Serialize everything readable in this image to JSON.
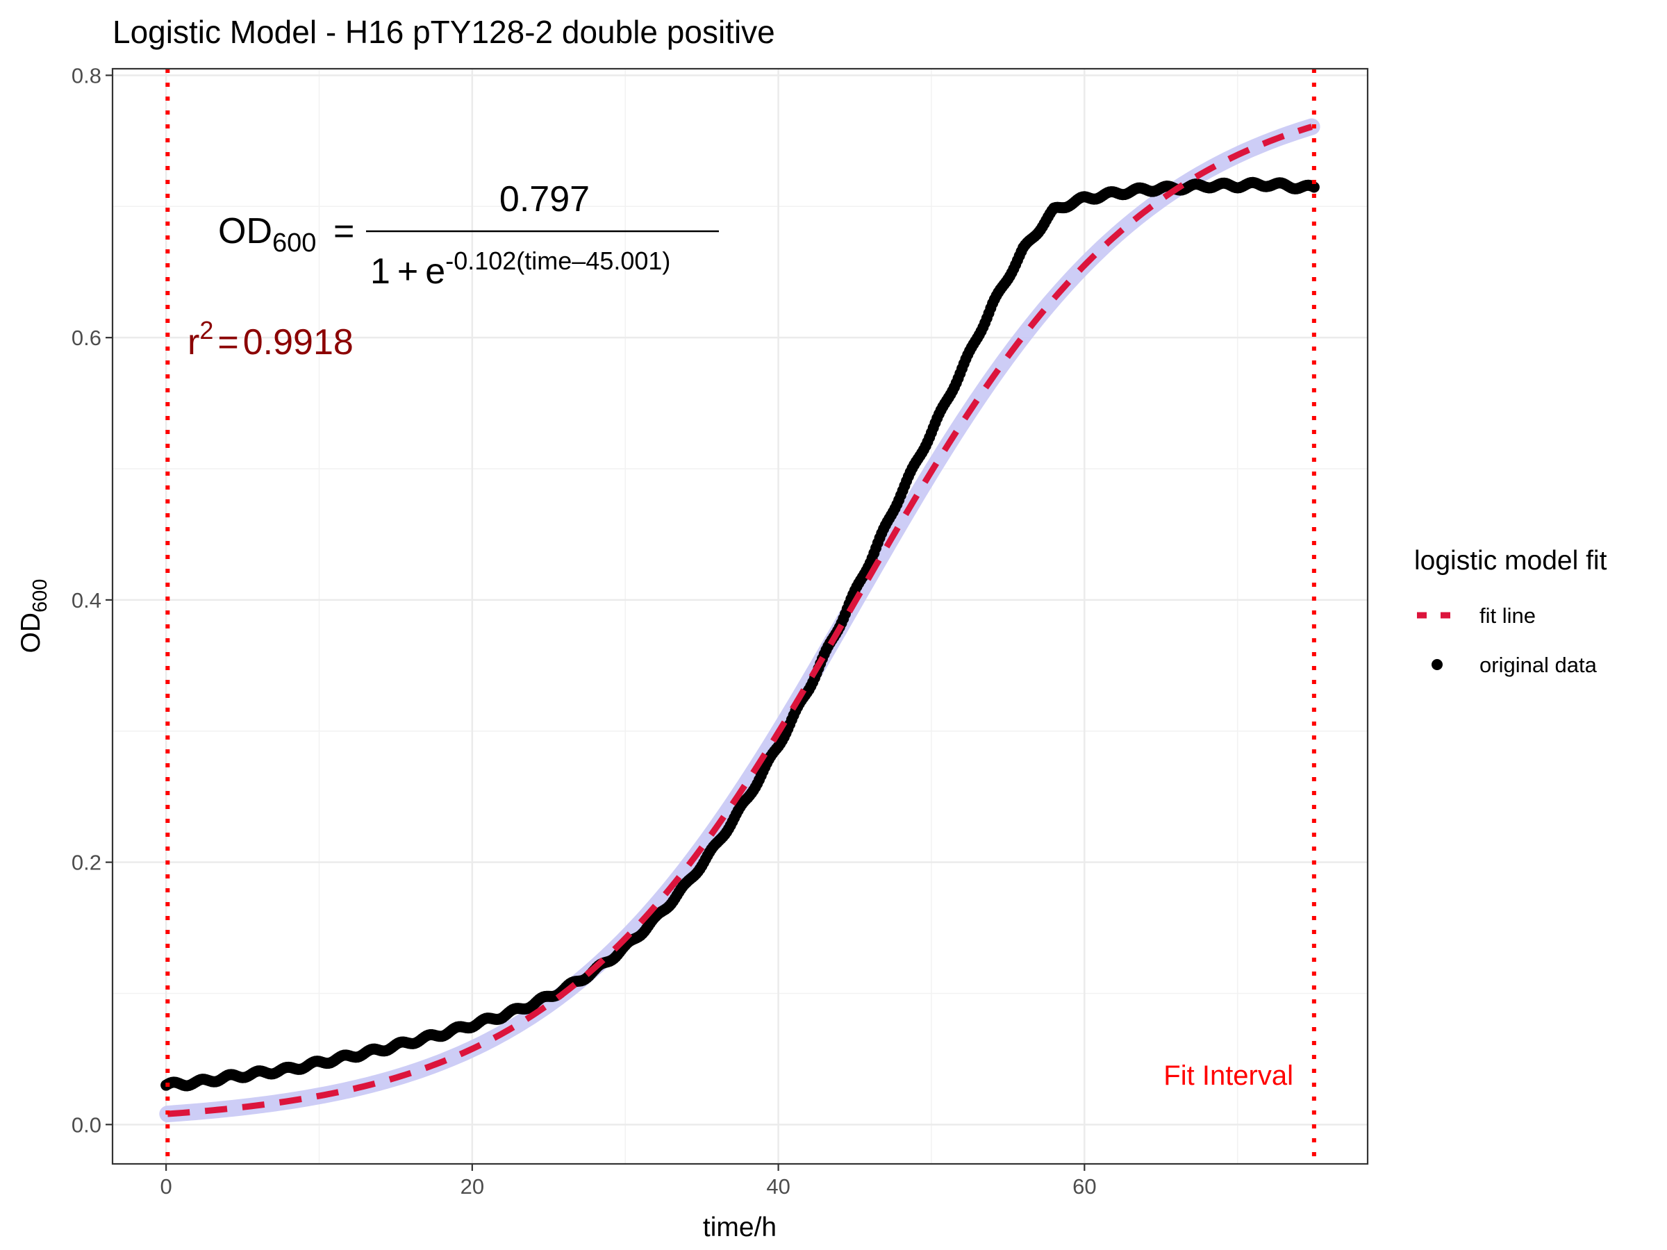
{
  "chart_data": {
    "type": "scatter",
    "title": "Logistic Model -  H16 pTY128-2 double positive",
    "xlabel": "time/h",
    "ylabel": {
      "base": "OD",
      "sub": "600"
    },
    "xlim": [
      -3.5,
      78.5
    ],
    "ylim": [
      -0.03,
      0.805
    ],
    "x_ticks": [
      0,
      20,
      40,
      60
    ],
    "x_tick_labels": [
      "0",
      "20",
      "40",
      "60"
    ],
    "y_ticks": [
      0.0,
      0.2,
      0.4,
      0.6,
      0.8
    ],
    "y_tick_labels": [
      "0.0",
      "0.2",
      "0.4",
      "0.6",
      "0.8"
    ],
    "grid": true,
    "model": {
      "K": 0.797,
      "r": 0.102,
      "t0": 45.001
    },
    "equation": {
      "lhs_base": "OD",
      "lhs_sub": "600",
      "equals": "=",
      "numerator": "0.797",
      "denominator_one": "1",
      "plus": "+",
      "e": "e",
      "exponent": "-0.102(time–45.001)"
    },
    "r_squared": {
      "symbol": "r",
      "power": "2",
      "equals": "=",
      "value": "0.9918"
    },
    "fit_interval": {
      "label": "Fit Interval",
      "start": 0.1,
      "end": 75
    },
    "legend": {
      "title": "logistic model fit",
      "position": "right",
      "items": [
        {
          "label": "fit line",
          "style": "dashed-red"
        },
        {
          "label": "original data",
          "style": "black-point"
        }
      ]
    },
    "series": [
      {
        "name": "fit line",
        "type": "line",
        "color": "#dc143c",
        "ribbon_color": "#c8c8f5",
        "x_range": [
          0.1,
          75
        ]
      },
      {
        "name": "original data",
        "type": "scatter",
        "color": "#000000",
        "x": [
          0,
          2,
          4,
          6,
          8,
          10,
          12,
          14,
          16,
          18,
          20,
          22,
          24,
          26,
          28,
          30,
          32,
          34,
          36,
          38,
          40,
          42,
          44,
          46,
          48,
          50,
          52,
          54,
          56,
          58,
          59,
          60,
          62,
          64,
          66,
          68,
          70,
          72,
          74,
          75
        ],
        "y": [
          0.03,
          0.032,
          0.036,
          0.039,
          0.042,
          0.047,
          0.052,
          0.057,
          0.063,
          0.069,
          0.076,
          0.083,
          0.092,
          0.103,
          0.117,
          0.135,
          0.157,
          0.183,
          0.214,
          0.249,
          0.289,
          0.333,
          0.381,
          0.43,
          0.481,
          0.528,
          0.576,
          0.625,
          0.667,
          0.697,
          0.702,
          0.706,
          0.71,
          0.713,
          0.714,
          0.716,
          0.716,
          0.717,
          0.715,
          0.714
        ]
      }
    ]
  }
}
